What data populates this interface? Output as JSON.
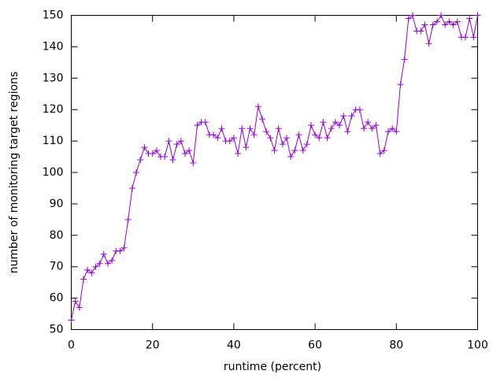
{
  "chart_data": {
    "type": "line",
    "xlabel": "runtime (percent)",
    "ylabel": "number of monitoring target regions",
    "x": [
      0,
      1,
      2,
      3,
      4,
      5,
      6,
      7,
      8,
      9,
      10,
      11,
      12,
      13,
      14,
      15,
      16,
      17,
      18,
      19,
      20,
      21,
      22,
      23,
      24,
      25,
      26,
      27,
      28,
      29,
      30,
      31,
      32,
      33,
      34,
      35,
      36,
      37,
      38,
      39,
      40,
      41,
      42,
      43,
      44,
      45,
      46,
      47,
      48,
      49,
      50,
      51,
      52,
      53,
      54,
      55,
      56,
      57,
      58,
      59,
      60,
      61,
      62,
      63,
      64,
      65,
      66,
      67,
      68,
      69,
      70,
      71,
      72,
      73,
      74,
      75,
      76,
      77,
      78,
      79,
      80,
      81,
      82,
      83,
      84,
      85,
      86,
      87,
      88,
      89,
      90,
      91,
      92,
      93,
      94,
      95,
      96,
      97,
      98,
      99,
      100
    ],
    "values": [
      53,
      59,
      57,
      66,
      69,
      68,
      70,
      71,
      74,
      71,
      72,
      75,
      75,
      76,
      85,
      95,
      100,
      104,
      108,
      106,
      106,
      107,
      105,
      105,
      110,
      104,
      109,
      110,
      106,
      107,
      103,
      115,
      116,
      116,
      112,
      112,
      111,
      114,
      110,
      110,
      111,
      106,
      114,
      108,
      114,
      112,
      121,
      117,
      113,
      111,
      107,
      114,
      109,
      111,
      105,
      107,
      112,
      107,
      109,
      115,
      112,
      111,
      116,
      111,
      114,
      116,
      115,
      118,
      113,
      118,
      120,
      120,
      114,
      116,
      114,
      115,
      106,
      107,
      113,
      114,
      113,
      128,
      136,
      149,
      150,
      145,
      145,
      147,
      141,
      147,
      148,
      150,
      147,
      148,
      147,
      148,
      143,
      143,
      149,
      143,
      150
    ],
    "color": "#9400d3",
    "xlim": [
      0,
      100
    ],
    "xticks": [
      0,
      20,
      40,
      60,
      80,
      100
    ],
    "ylim": [
      50,
      150
    ],
    "yticks": [
      50,
      60,
      70,
      80,
      90,
      100,
      110,
      120,
      130,
      140,
      150
    ]
  }
}
